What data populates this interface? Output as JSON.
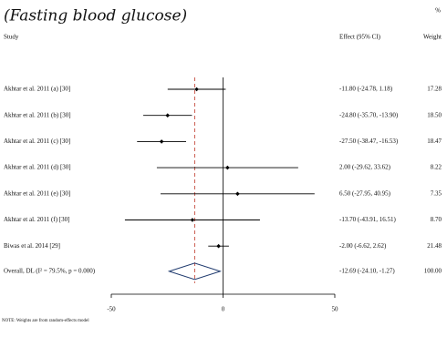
{
  "chart_data": {
    "type": "forest",
    "title": "(Fasting blood glucose)",
    "weight_unit": "%",
    "headers": [
      "Study",
      "Effect (95% CI)",
      "Weight"
    ],
    "studies": [
      "Akhtar et al. 2011 (a) [30]",
      "Akhtar et al. 2011 (b) [30]",
      "Akhtar et al. 2011 (c) [30]",
      "Akhtar et al. 2011 (d) [30]",
      "Akhtar et al. 2011 (e) [30]",
      "Akhtar et al. 2011 (f) [30]",
      "Biwas et al. 2014 [29]"
    ],
    "values": [
      -11.8,
      -24.8,
      -27.5,
      2.0,
      6.5,
      -13.7,
      -2.0
    ],
    "lower": [
      -24.78,
      -35.7,
      -38.47,
      -29.62,
      -27.95,
      -43.91,
      -6.62
    ],
    "upper": [
      1.18,
      -13.9,
      -16.53,
      33.62,
      40.95,
      16.51,
      2.62
    ],
    "value_labels": [
      "-11.80 (-24.78, 1.18)",
      "-24.80 (-35.70, -13.90)",
      "-27.50 (-38.47, -16.53)",
      "2.00 (-29.62, 33.62)",
      "6.50 (-27.95, 40.95)",
      "-13.70 (-43.91, 16.51)",
      "-2.00 (-6.62, 2.62)"
    ],
    "weights": [
      17.28,
      {
        "value": 18.5,
        "label": "18.50"
      },
      18.47,
      8.22,
      7.35,
      {
        "value": 8.7,
        "label": "8.70"
      },
      21.48
    ],
    "overall": {
      "name": "Overall, DL (I² = 79.5%, p = 0.000)",
      "value": -12.69,
      "lower": -24.1,
      "upper": -1.27,
      "value_label": "-12.69 (-24.10, -1.27)",
      "weight": {
        "value": 100,
        "label": "100.00"
      }
    },
    "xlim": [
      -50,
      50
    ],
    "xticks": [
      -50,
      0,
      50
    ],
    "marker_color": "#000000",
    "overall_line_color": "#c0392b",
    "diamond_color": "#1f3a6e",
    "note": "NOTE: Weights are from random-effects model"
  }
}
